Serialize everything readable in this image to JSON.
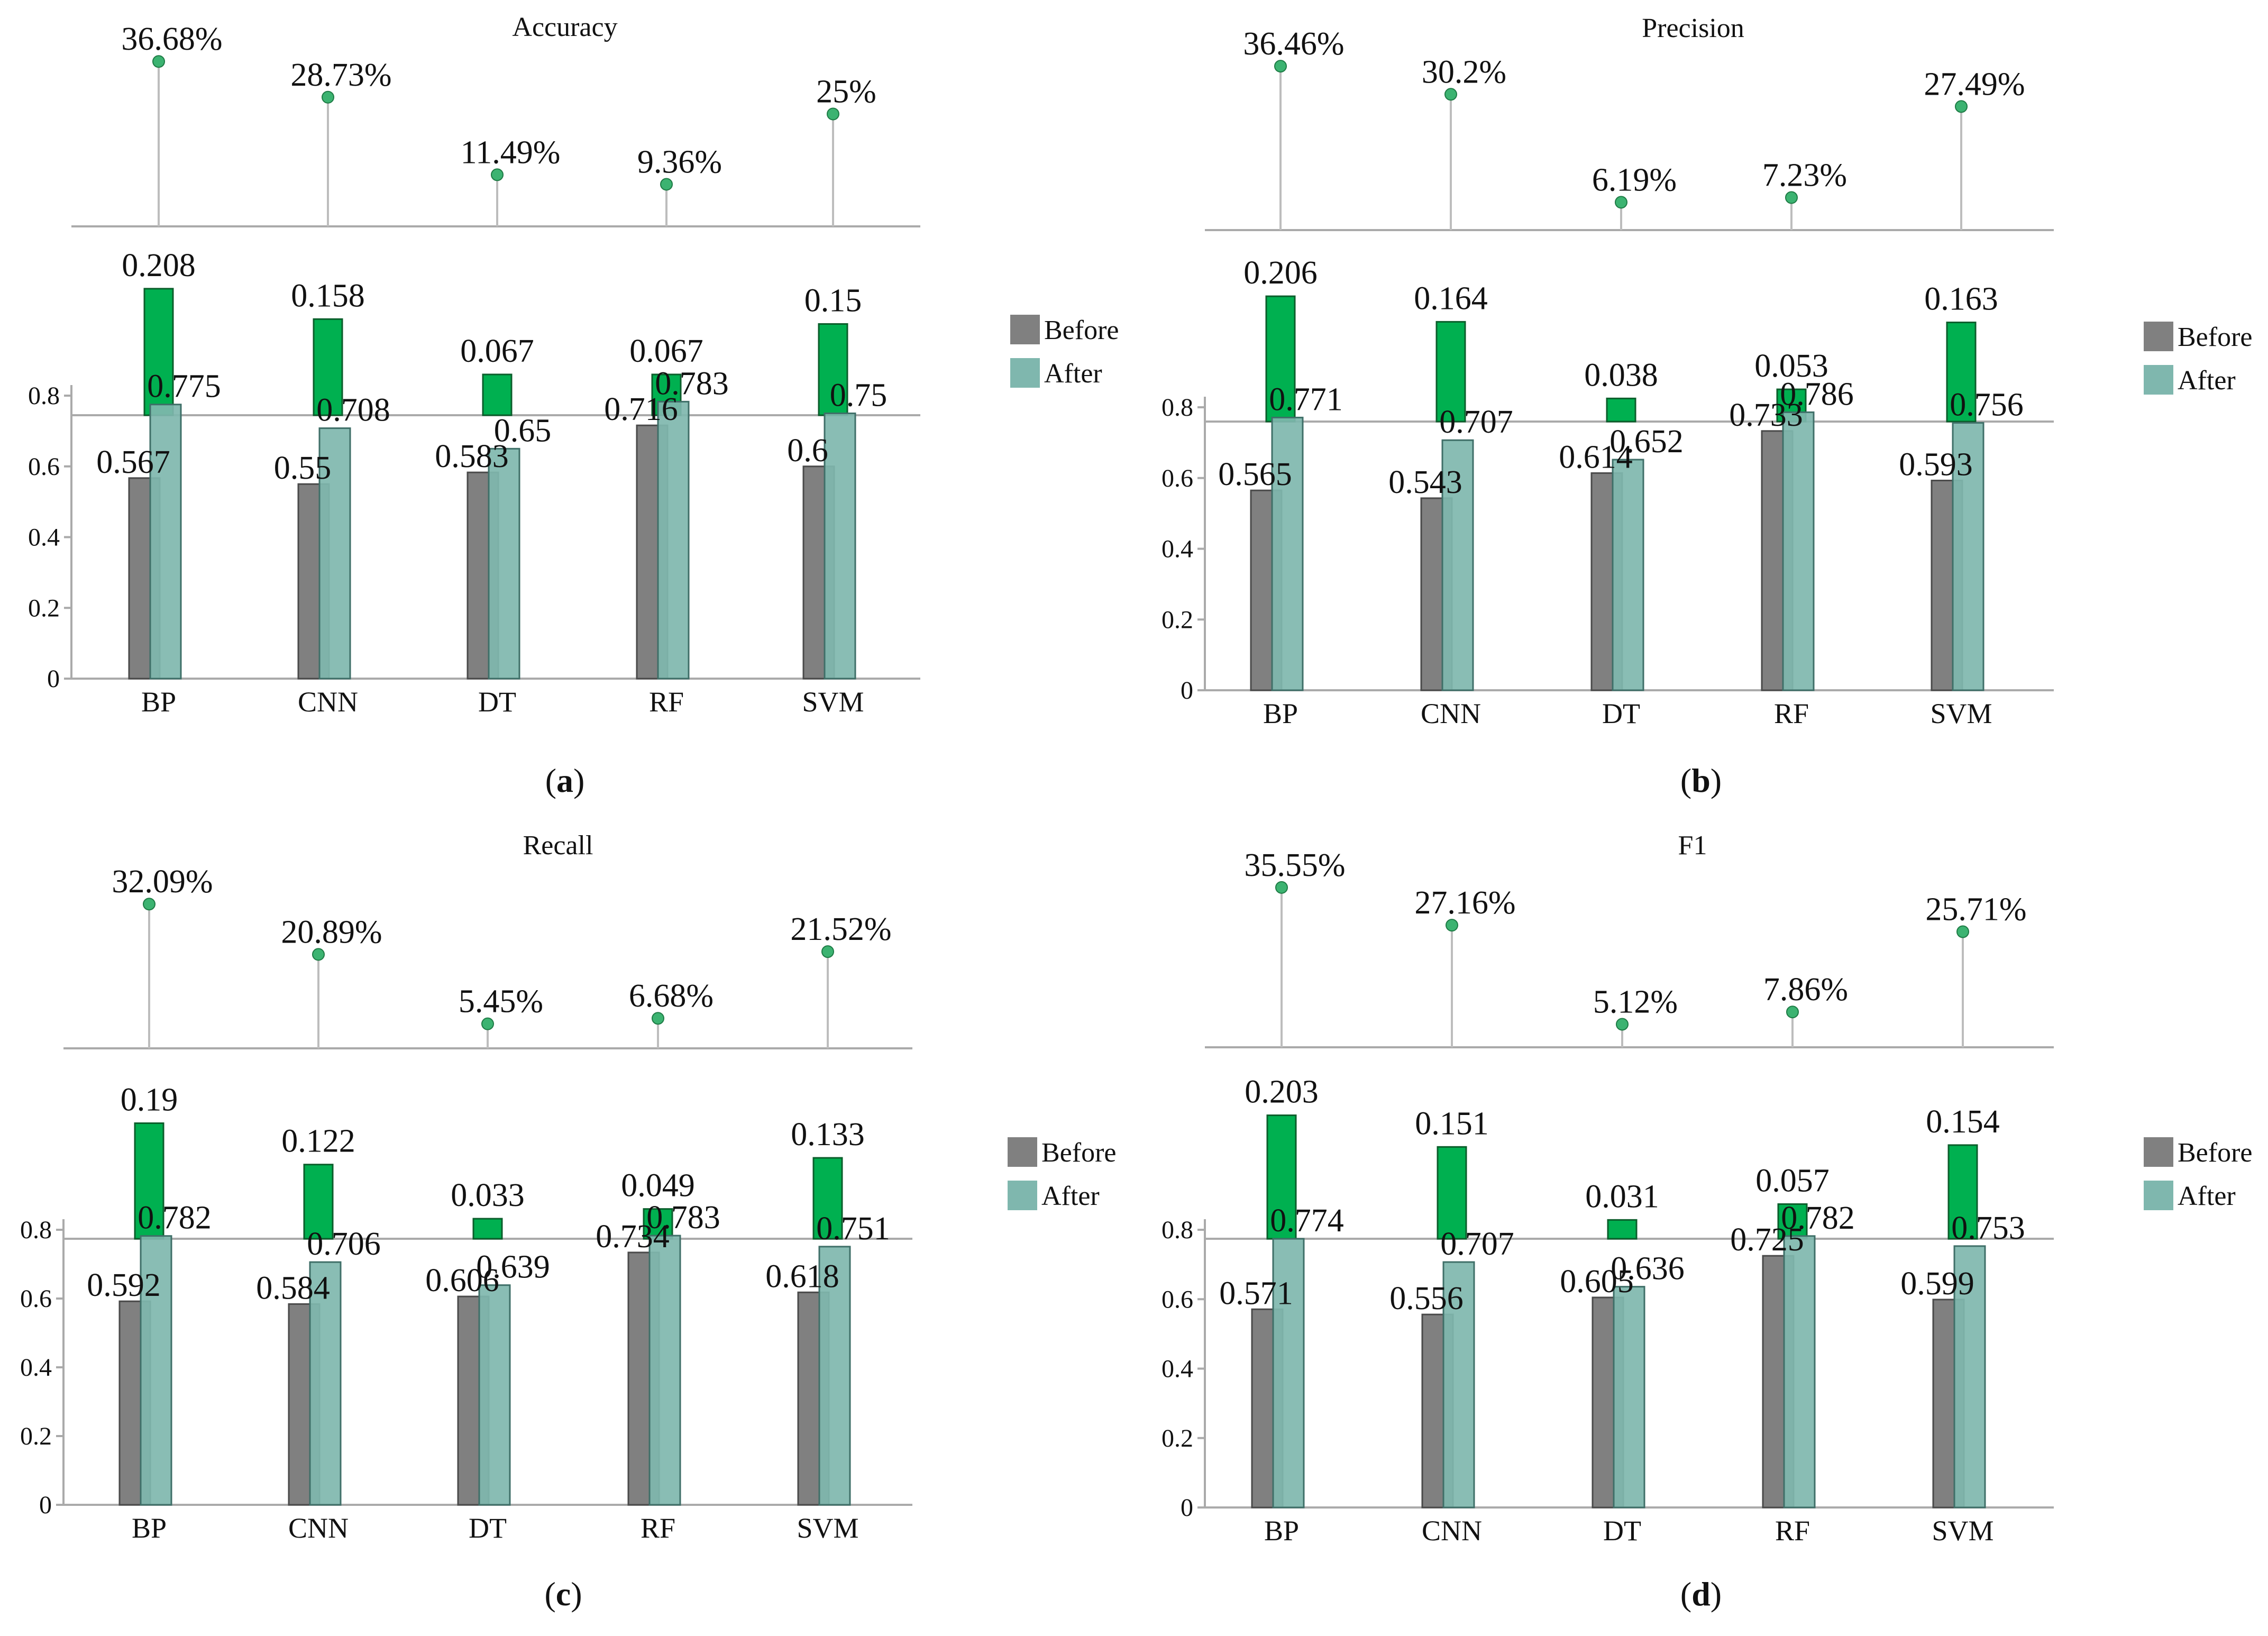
{
  "legend": {
    "before": "Before",
    "after": "After"
  },
  "colors": {
    "before": "#808080",
    "after": "#7fb7ae",
    "diff": "#00b050",
    "dot": "#3cb371",
    "stem": "#bdbdbd",
    "axis": "#aaaaaa",
    "text": "#111111"
  },
  "chart_data": [
    {
      "panel": "(a)",
      "panel_letter": "a",
      "title": "Accuracy",
      "type": "bar",
      "categories": [
        "BP",
        "CNN",
        "DT",
        "RF",
        "SVM"
      ],
      "series": [
        {
          "name": "Before",
          "values": [
            0.567,
            0.55,
            0.583,
            0.716,
            0.6
          ]
        },
        {
          "name": "After",
          "values": [
            0.775,
            0.708,
            0.65,
            0.783,
            0.75
          ]
        }
      ],
      "diff_values": [
        0.208,
        0.158,
        0.067,
        0.067,
        0.15
      ],
      "percent_improvement": [
        36.68,
        28.73,
        11.49,
        9.36,
        25
      ],
      "value_labels": {
        "before": [
          "0.567",
          "0.55",
          "0.583",
          "0.716",
          "0.6"
        ],
        "after": [
          "0.775",
          "0.708",
          "0.65",
          "0.783",
          "0.75"
        ],
        "diff": [
          "0.208",
          "0.158",
          "0.067",
          "0.067",
          "0.15"
        ],
        "percent": [
          "36.68%",
          "28.73%",
          "11.49%",
          "9.36%",
          "25%"
        ]
      },
      "yticks": [
        0,
        0.2,
        0.4,
        0.6,
        0.8
      ],
      "ytick_labels": [
        "0",
        "0.2",
        "0.4",
        "0.6",
        "0.8"
      ],
      "ylim": [
        0,
        0.8
      ]
    },
    {
      "panel": "(b)",
      "panel_letter": "b",
      "title": "Precision",
      "type": "bar",
      "categories": [
        "BP",
        "CNN",
        "DT",
        "RF",
        "SVM"
      ],
      "series": [
        {
          "name": "Before",
          "values": [
            0.565,
            0.543,
            0.614,
            0.733,
            0.593
          ]
        },
        {
          "name": "After",
          "values": [
            0.771,
            0.707,
            0.652,
            0.786,
            0.756
          ]
        }
      ],
      "diff_values": [
        0.206,
        0.164,
        0.038,
        0.053,
        0.163
      ],
      "percent_improvement": [
        36.46,
        30.2,
        6.19,
        7.23,
        27.49
      ],
      "value_labels": {
        "before": [
          "0.565",
          "0.543",
          "0.614",
          "0.733",
          "0.593"
        ],
        "after": [
          "0.771",
          "0.707",
          "0.652",
          "0.786",
          "0.756"
        ],
        "diff": [
          "0.206",
          "0.164",
          "0.038",
          "0.053",
          "0.163"
        ],
        "percent": [
          "36.46%",
          "30.2%",
          "6.19%",
          "7.23%",
          "27.49%"
        ]
      },
      "yticks": [
        0,
        0.2,
        0.4,
        0.6,
        0.8
      ],
      "ytick_labels": [
        "0",
        "0.2",
        "0.4",
        "0.6",
        "0.8"
      ],
      "ylim": [
        0,
        0.8
      ]
    },
    {
      "panel": "(c)",
      "panel_letter": "c",
      "title": "Recall",
      "type": "bar",
      "categories": [
        "BP",
        "CNN",
        "DT",
        "RF",
        "SVM"
      ],
      "series": [
        {
          "name": "Before",
          "values": [
            0.592,
            0.584,
            0.606,
            0.734,
            0.618
          ]
        },
        {
          "name": "After",
          "values": [
            0.782,
            0.706,
            0.639,
            0.783,
            0.751
          ]
        }
      ],
      "diff_values": [
        0.19,
        0.122,
        0.033,
        0.049,
        0.133
      ],
      "percent_improvement": [
        32.09,
        20.89,
        5.45,
        6.68,
        21.52
      ],
      "value_labels": {
        "before": [
          "0.592",
          "0.584",
          "0.606",
          "0.734",
          "0.618"
        ],
        "after": [
          "0.782",
          "0.706",
          "0.639",
          "0.783",
          "0.751"
        ],
        "diff": [
          "0.19",
          "0.122",
          "0.033",
          "0.049",
          "0.133"
        ],
        "percent": [
          "32.09%",
          "20.89%",
          "5.45%",
          "6.68%",
          "21.52%"
        ]
      },
      "yticks": [
        0,
        0.2,
        0.4,
        0.6,
        0.8
      ],
      "ytick_labels": [
        "0",
        "0.2",
        "0.4",
        "0.6",
        "0.8"
      ],
      "ylim": [
        0,
        0.8
      ]
    },
    {
      "panel": "(d)",
      "panel_letter": "d",
      "title": "F1",
      "type": "bar",
      "categories": [
        "BP",
        "CNN",
        "DT",
        "RF",
        "SVM"
      ],
      "series": [
        {
          "name": "Before",
          "values": [
            0.571,
            0.556,
            0.605,
            0.725,
            0.599
          ]
        },
        {
          "name": "After",
          "values": [
            0.774,
            0.707,
            0.636,
            0.782,
            0.753
          ]
        }
      ],
      "diff_values": [
        0.203,
        0.151,
        0.031,
        0.057,
        0.154
      ],
      "percent_improvement": [
        35.55,
        27.16,
        5.12,
        7.86,
        25.71
      ],
      "value_labels": {
        "before": [
          "0.571",
          "0.556",
          "0.605",
          "0.725",
          "0.599"
        ],
        "after": [
          "0.774",
          "0.707",
          "0.636",
          "0.782",
          "0.753"
        ],
        "diff": [
          "0.203",
          "0.151",
          "0.031",
          "0.057",
          "0.154"
        ],
        "percent": [
          "35.55%",
          "27.16%",
          "5.12%",
          "7.86%",
          "25.71%"
        ]
      },
      "yticks": [
        0,
        0.2,
        0.4,
        0.6,
        0.8
      ],
      "ytick_labels": [
        "0",
        "0.2",
        "0.4",
        "0.6",
        "0.8"
      ],
      "ylim": [
        0,
        0.8
      ]
    }
  ]
}
